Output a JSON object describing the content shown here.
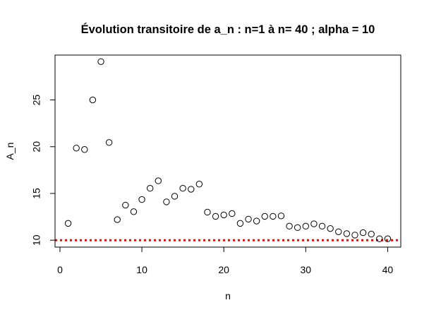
{
  "chart_data": {
    "type": "scatter",
    "title": "Évolution transitoire de a_n : n=1 à n= 40 ; alpha =  10",
    "xlabel": "n",
    "ylabel": "A_n",
    "xlim": [
      -0.6,
      41.6
    ],
    "ylim": [
      9.26,
      29.8
    ],
    "xticks": [
      0,
      10,
      20,
      30,
      40
    ],
    "yticks": [
      10,
      15,
      20,
      25
    ],
    "grid": false,
    "legend": "none",
    "colors": {
      "points": "#000000",
      "reference_line": "#ff0000"
    },
    "reference_line": {
      "y": 10,
      "style": "dotted"
    },
    "series": [
      {
        "x": [
          1,
          2,
          3,
          4,
          5,
          6,
          7,
          8,
          9,
          10,
          11,
          12,
          13,
          14,
          15,
          16,
          17,
          18,
          19,
          20,
          21,
          22,
          23,
          24,
          25,
          26,
          27,
          28,
          29,
          30,
          31,
          32,
          33,
          34,
          35,
          36,
          37,
          38,
          39,
          40
        ],
        "values": [
          11.8,
          19.85,
          19.7,
          25.0,
          29.1,
          20.45,
          12.2,
          13.75,
          13.05,
          14.35,
          15.55,
          16.35,
          14.1,
          14.7,
          15.55,
          15.45,
          16.0,
          13.0,
          12.55,
          12.7,
          12.85,
          11.8,
          12.25,
          12.05,
          12.55,
          12.55,
          12.6,
          11.5,
          11.35,
          11.5,
          11.75,
          11.5,
          11.25,
          10.9,
          10.7,
          10.55,
          10.8,
          10.65,
          10.15,
          10.15
        ]
      }
    ]
  }
}
